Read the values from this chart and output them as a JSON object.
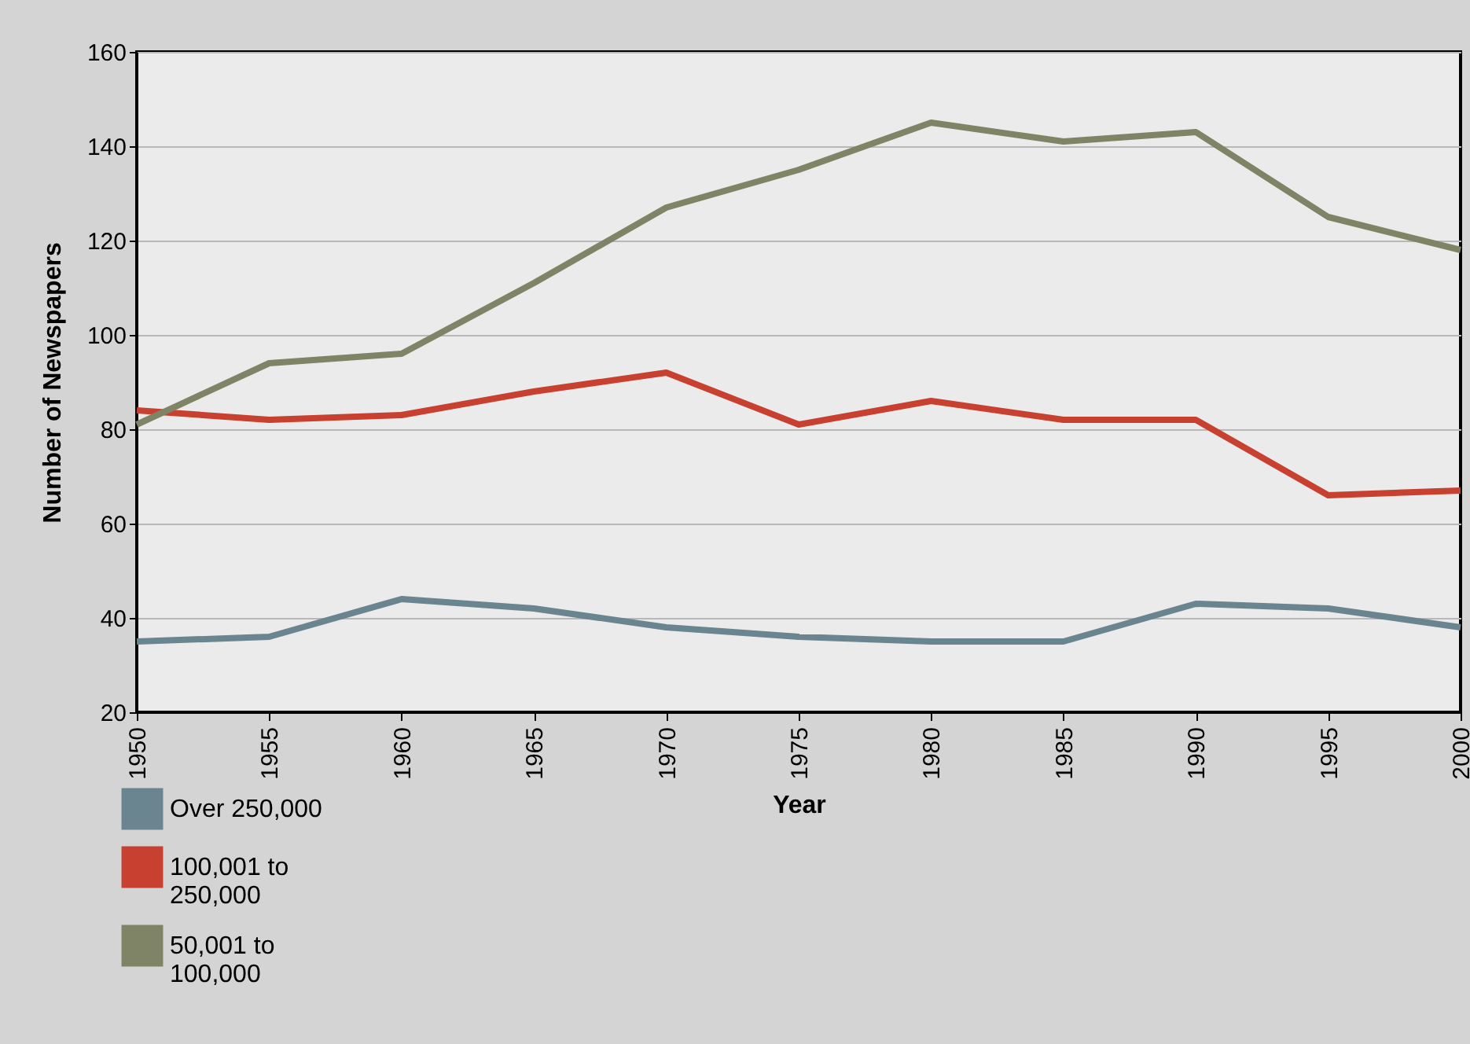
{
  "chart_data": {
    "type": "line",
    "xlabel": "Year",
    "ylabel": "Number of Newspapers",
    "x": [
      1950,
      1955,
      1960,
      1965,
      1970,
      1975,
      1980,
      1985,
      1990,
      1995,
      2000
    ],
    "series": [
      {
        "name": "Over 250,000",
        "color": "#6a8490",
        "values": [
          35,
          36,
          44,
          42,
          38,
          36,
          35,
          35,
          43,
          42,
          38
        ]
      },
      {
        "name": "100,001 to 250,000",
        "color": "#c8402f",
        "values": [
          84,
          82,
          83,
          88,
          92,
          81,
          86,
          82,
          82,
          66,
          67
        ]
      },
      {
        "name": "50,001 to 100,000",
        "color": "#7f8466",
        "values": [
          81,
          94,
          96,
          111,
          127,
          135,
          145,
          141,
          143,
          125,
          118
        ]
      }
    ],
    "xlim": [
      1950,
      2000
    ],
    "xticks": [
      1950,
      1955,
      1960,
      1965,
      1970,
      1975,
      1980,
      1985,
      1990,
      1995,
      2000
    ],
    "ylim": [
      20,
      160
    ],
    "yticks": [
      20,
      40,
      60,
      80,
      100,
      120,
      140,
      160
    ],
    "grid": "y",
    "legend": "bottom left",
    "marker": "none",
    "line_style": "solid"
  }
}
